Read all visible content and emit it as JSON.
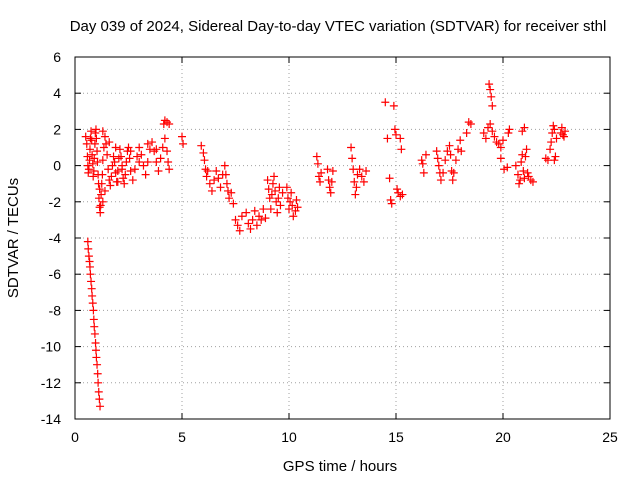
{
  "chart_data": {
    "type": "scatter",
    "title": "Day 039 of 2024, Sidereal Day-to-day VTEC variation (SDTVAR) for receiver sthl",
    "xlabel": "GPS time / hours",
    "ylabel": "SDTVAR / TECUs",
    "xlim": [
      0,
      25
    ],
    "ylim": [
      -14,
      6
    ],
    "xticks": [
      0,
      5,
      10,
      15,
      20,
      25
    ],
    "yticks": [
      -14,
      -12,
      -10,
      -8,
      -6,
      -4,
      -2,
      0,
      2,
      4,
      6
    ],
    "grid": true,
    "marker": "+",
    "series": [
      {
        "name": "SDTVAR",
        "color": "#ff0000",
        "points": [
          [
            0.6,
            -4.2
          ],
          [
            0.62,
            -4.6
          ],
          [
            0.65,
            -5.0
          ],
          [
            0.68,
            -5.3
          ],
          [
            0.7,
            -5.6
          ],
          [
            0.72,
            -6.0
          ],
          [
            0.75,
            -6.4
          ],
          [
            0.78,
            -6.8
          ],
          [
            0.8,
            -7.2
          ],
          [
            0.83,
            -7.6
          ],
          [
            0.86,
            -8.0
          ],
          [
            0.88,
            -8.5
          ],
          [
            0.9,
            -8.9
          ],
          [
            0.93,
            -9.3
          ],
          [
            0.96,
            -9.8
          ],
          [
            0.98,
            -10.2
          ],
          [
            1.0,
            -10.6
          ],
          [
            1.03,
            -11.0
          ],
          [
            1.06,
            -11.5
          ],
          [
            1.08,
            -12.0
          ],
          [
            1.11,
            -12.5
          ],
          [
            1.14,
            -12.9
          ],
          [
            1.17,
            -13.3
          ],
          [
            0.5,
            1.6
          ],
          [
            0.55,
            1.2
          ],
          [
            0.58,
            0.5
          ],
          [
            0.6,
            0.0
          ],
          [
            0.62,
            -0.4
          ],
          [
            0.65,
            -0.2
          ],
          [
            0.68,
            0.3
          ],
          [
            0.7,
            0.9
          ],
          [
            0.72,
            1.5
          ],
          [
            0.75,
            1.9
          ],
          [
            0.78,
            1.4
          ],
          [
            0.8,
            0.6
          ],
          [
            0.83,
            0.1
          ],
          [
            0.85,
            -0.6
          ],
          [
            0.88,
            -0.3
          ],
          [
            0.9,
            0.4
          ],
          [
            0.93,
            1.2
          ],
          [
            0.95,
            1.8
          ],
          [
            0.98,
            2.0
          ],
          [
            1.0,
            1.5
          ],
          [
            1.03,
            0.8
          ],
          [
            1.05,
            0.2
          ],
          [
            1.08,
            -0.5
          ],
          [
            1.1,
            -1.0
          ],
          [
            1.12,
            -1.8
          ],
          [
            1.15,
            -2.3
          ],
          [
            1.18,
            -2.6
          ],
          [
            1.2,
            -2.2
          ],
          [
            1.22,
            -1.6
          ],
          [
            1.25,
            -1.0
          ],
          [
            1.28,
            -0.5
          ],
          [
            1.3,
            0.3
          ],
          [
            1.35,
            1.0
          ],
          [
            1.4,
            1.6
          ],
          [
            1.45,
            1.2
          ],
          [
            1.5,
            0.6
          ],
          [
            1.55,
            -0.2
          ],
          [
            1.6,
            -0.8
          ],
          [
            1.65,
            -1.1
          ],
          [
            1.7,
            -0.6
          ],
          [
            1.75,
            0.0
          ],
          [
            1.8,
            0.5
          ],
          [
            1.85,
            0.2
          ],
          [
            1.9,
            -0.4
          ],
          [
            1.95,
            -0.9
          ],
          [
            2.0,
            -0.3
          ],
          [
            2.05,
            0.4
          ],
          [
            2.1,
            0.9
          ],
          [
            2.15,
            0.5
          ],
          [
            2.2,
            -0.2
          ],
          [
            2.25,
            -0.7
          ],
          [
            2.3,
            -1.0
          ],
          [
            2.35,
            -0.5
          ],
          [
            2.4,
            0.2
          ],
          [
            2.45,
            0.8
          ],
          [
            2.5,
            1.0
          ],
          [
            2.55,
            0.4
          ],
          [
            2.6,
            -0.3
          ],
          [
            2.7,
            -0.8
          ],
          [
            2.8,
            -0.2
          ],
          [
            2.9,
            0.5
          ],
          [
            3.0,
            1.0
          ],
          [
            3.1,
            0.6
          ],
          [
            3.2,
            0.0
          ],
          [
            3.3,
            -0.5
          ],
          [
            3.4,
            0.2
          ],
          [
            3.5,
            0.9
          ],
          [
            3.6,
            1.3
          ],
          [
            3.7,
            0.8
          ],
          [
            3.8,
            0.2
          ],
          [
            3.9,
            -0.3
          ],
          [
            4.0,
            0.4
          ],
          [
            4.1,
            1.0
          ],
          [
            4.2,
            1.5
          ],
          [
            4.3,
            0.8
          ],
          [
            4.35,
            0.2
          ],
          [
            4.4,
            -0.2
          ],
          [
            4.15,
            2.3
          ],
          [
            4.2,
            2.5
          ],
          [
            4.3,
            2.4
          ],
          [
            4.4,
            2.3
          ],
          [
            1.3,
            1.9
          ],
          [
            1.6,
            1.3
          ],
          [
            1.9,
            1.0
          ],
          [
            2.2,
            0.0
          ],
          [
            2.6,
            0.8
          ],
          [
            3.0,
            0.2
          ],
          [
            3.4,
            1.2
          ],
          [
            3.8,
            0.9
          ],
          [
            2.0,
            -0.9
          ],
          [
            1.4,
            -1.4
          ],
          [
            1.3,
            -2.0
          ],
          [
            1.15,
            -1.3
          ],
          [
            5.0,
            1.6
          ],
          [
            5.05,
            1.2
          ],
          [
            5.9,
            1.1
          ],
          [
            6.0,
            0.7
          ],
          [
            6.05,
            0.3
          ],
          [
            6.1,
            -0.2
          ],
          [
            6.15,
            -0.6
          ],
          [
            6.2,
            -0.3
          ],
          [
            6.3,
            -1.0
          ],
          [
            6.4,
            -1.4
          ],
          [
            6.5,
            -0.8
          ],
          [
            6.6,
            -0.3
          ],
          [
            6.7,
            -0.7
          ],
          [
            6.8,
            -1.2
          ],
          [
            6.9,
            -0.5
          ],
          [
            7.0,
            0.0
          ],
          [
            7.05,
            -0.5
          ],
          [
            7.1,
            -1.0
          ],
          [
            7.15,
            -1.4
          ],
          [
            7.2,
            -1.8
          ],
          [
            7.3,
            -1.5
          ],
          [
            7.4,
            -2.1
          ],
          [
            7.5,
            -3.0
          ],
          [
            7.6,
            -3.3
          ],
          [
            7.7,
            -3.6
          ],
          [
            7.8,
            -2.8
          ],
          [
            8.0,
            -2.6
          ],
          [
            8.1,
            -3.2
          ],
          [
            8.2,
            -3.5
          ],
          [
            8.3,
            -3.0
          ],
          [
            8.4,
            -2.5
          ],
          [
            8.5,
            -3.3
          ],
          [
            8.6,
            -2.8
          ],
          [
            8.7,
            -3.0
          ],
          [
            8.8,
            -2.4
          ],
          [
            8.9,
            -2.9
          ],
          [
            9.0,
            -0.8
          ],
          [
            9.05,
            -1.3
          ],
          [
            9.1,
            -1.8
          ],
          [
            9.15,
            -2.4
          ],
          [
            9.2,
            -1.6
          ],
          [
            9.25,
            -1.0
          ],
          [
            9.3,
            -0.6
          ],
          [
            9.35,
            -1.4
          ],
          [
            9.4,
            -2.0
          ],
          [
            9.45,
            -2.6
          ],
          [
            9.5,
            -1.8
          ],
          [
            9.55,
            -1.2
          ],
          [
            9.6,
            -2.2
          ],
          [
            9.7,
            -1.5
          ],
          [
            9.9,
            -1.2
          ],
          [
            9.95,
            -1.8
          ],
          [
            10.0,
            -2.4
          ],
          [
            10.05,
            -2.0
          ],
          [
            10.1,
            -1.5
          ],
          [
            10.15,
            -2.2
          ],
          [
            10.2,
            -2.8
          ],
          [
            10.3,
            -2.5
          ],
          [
            10.35,
            -1.9
          ],
          [
            10.4,
            -2.3
          ],
          [
            11.3,
            0.5
          ],
          [
            11.35,
            0.1
          ],
          [
            11.4,
            -0.6
          ],
          [
            11.45,
            -0.9
          ],
          [
            11.5,
            -0.4
          ],
          [
            11.8,
            -0.2
          ],
          [
            11.85,
            -0.8
          ],
          [
            11.9,
            -1.2
          ],
          [
            11.95,
            -1.5
          ],
          [
            12.0,
            -0.9
          ],
          [
            12.05,
            -0.3
          ],
          [
            12.9,
            1.0
          ],
          [
            12.95,
            0.4
          ],
          [
            13.0,
            -0.2
          ],
          [
            13.05,
            -0.9
          ],
          [
            13.1,
            -1.6
          ],
          [
            13.15,
            -1.2
          ],
          [
            13.2,
            -0.5
          ],
          [
            13.3,
            -0.2
          ],
          [
            13.4,
            -0.6
          ],
          [
            13.5,
            -0.9
          ],
          [
            13.6,
            -0.3
          ],
          [
            14.5,
            3.5
          ],
          [
            14.6,
            1.5
          ],
          [
            14.7,
            -0.7
          ],
          [
            14.75,
            -1.9
          ],
          [
            14.8,
            -2.1
          ],
          [
            14.9,
            3.3
          ],
          [
            14.95,
            2.0
          ],
          [
            15.0,
            1.7
          ],
          [
            15.05,
            -1.3
          ],
          [
            15.1,
            -1.5
          ],
          [
            15.2,
            -1.7
          ],
          [
            15.3,
            -1.6
          ],
          [
            15.2,
            1.5
          ],
          [
            15.25,
            0.9
          ],
          [
            16.2,
            0.3
          ],
          [
            16.25,
            0.1
          ],
          [
            16.3,
            -0.4
          ],
          [
            16.4,
            0.6
          ],
          [
            16.9,
            0.8
          ],
          [
            16.95,
            0.4
          ],
          [
            17.0,
            0.0
          ],
          [
            17.05,
            -0.4
          ],
          [
            17.1,
            -0.8
          ],
          [
            17.2,
            -0.4
          ],
          [
            17.3,
            0.3
          ],
          [
            17.4,
            0.8
          ],
          [
            17.5,
            1.1
          ],
          [
            17.55,
            0.6
          ],
          [
            17.6,
            -0.3
          ],
          [
            17.65,
            -0.8
          ],
          [
            17.7,
            -0.4
          ],
          [
            17.8,
            0.3
          ],
          [
            17.9,
            0.9
          ],
          [
            18.0,
            1.4
          ],
          [
            18.05,
            0.8
          ],
          [
            18.3,
            1.8
          ],
          [
            18.4,
            2.4
          ],
          [
            18.5,
            2.3
          ],
          [
            19.1,
            1.8
          ],
          [
            19.2,
            1.5
          ],
          [
            19.3,
            2.1
          ],
          [
            19.4,
            2.3
          ],
          [
            19.5,
            1.9
          ],
          [
            19.6,
            1.6
          ],
          [
            19.7,
            1.3
          ],
          [
            19.8,
            1.2
          ],
          [
            19.9,
            1.0
          ],
          [
            20.0,
            1.4
          ],
          [
            19.35,
            4.5
          ],
          [
            19.4,
            4.2
          ],
          [
            19.45,
            3.8
          ],
          [
            19.5,
            3.3
          ],
          [
            19.9,
            0.4
          ],
          [
            20.05,
            -0.2
          ],
          [
            20.2,
            -0.1
          ],
          [
            20.3,
            2.0
          ],
          [
            20.25,
            1.8
          ],
          [
            20.6,
            0.0
          ],
          [
            20.7,
            -0.5
          ],
          [
            20.75,
            -1.0
          ],
          [
            20.8,
            -0.8
          ],
          [
            20.85,
            0.2
          ],
          [
            20.9,
            0.6
          ],
          [
            20.95,
            -0.3
          ],
          [
            21.0,
            -0.7
          ],
          [
            21.05,
            0.5
          ],
          [
            21.1,
            0.9
          ],
          [
            21.15,
            -0.4
          ],
          [
            21.2,
            -0.6
          ],
          [
            21.3,
            -0.8
          ],
          [
            21.4,
            -0.9
          ],
          [
            21.0,
            2.1
          ],
          [
            20.9,
            1.9
          ],
          [
            22.0,
            0.4
          ],
          [
            22.1,
            0.3
          ],
          [
            22.2,
            0.9
          ],
          [
            22.25,
            1.3
          ],
          [
            22.3,
            1.8
          ],
          [
            22.35,
            2.2
          ],
          [
            22.4,
            2.0
          ],
          [
            22.5,
            1.5
          ],
          [
            22.45,
            0.5
          ],
          [
            22.4,
            0.3
          ],
          [
            22.7,
            1.8
          ],
          [
            22.75,
            2.1
          ],
          [
            22.8,
            1.7
          ],
          [
            22.85,
            1.6
          ],
          [
            22.9,
            1.9
          ]
        ]
      }
    ]
  }
}
